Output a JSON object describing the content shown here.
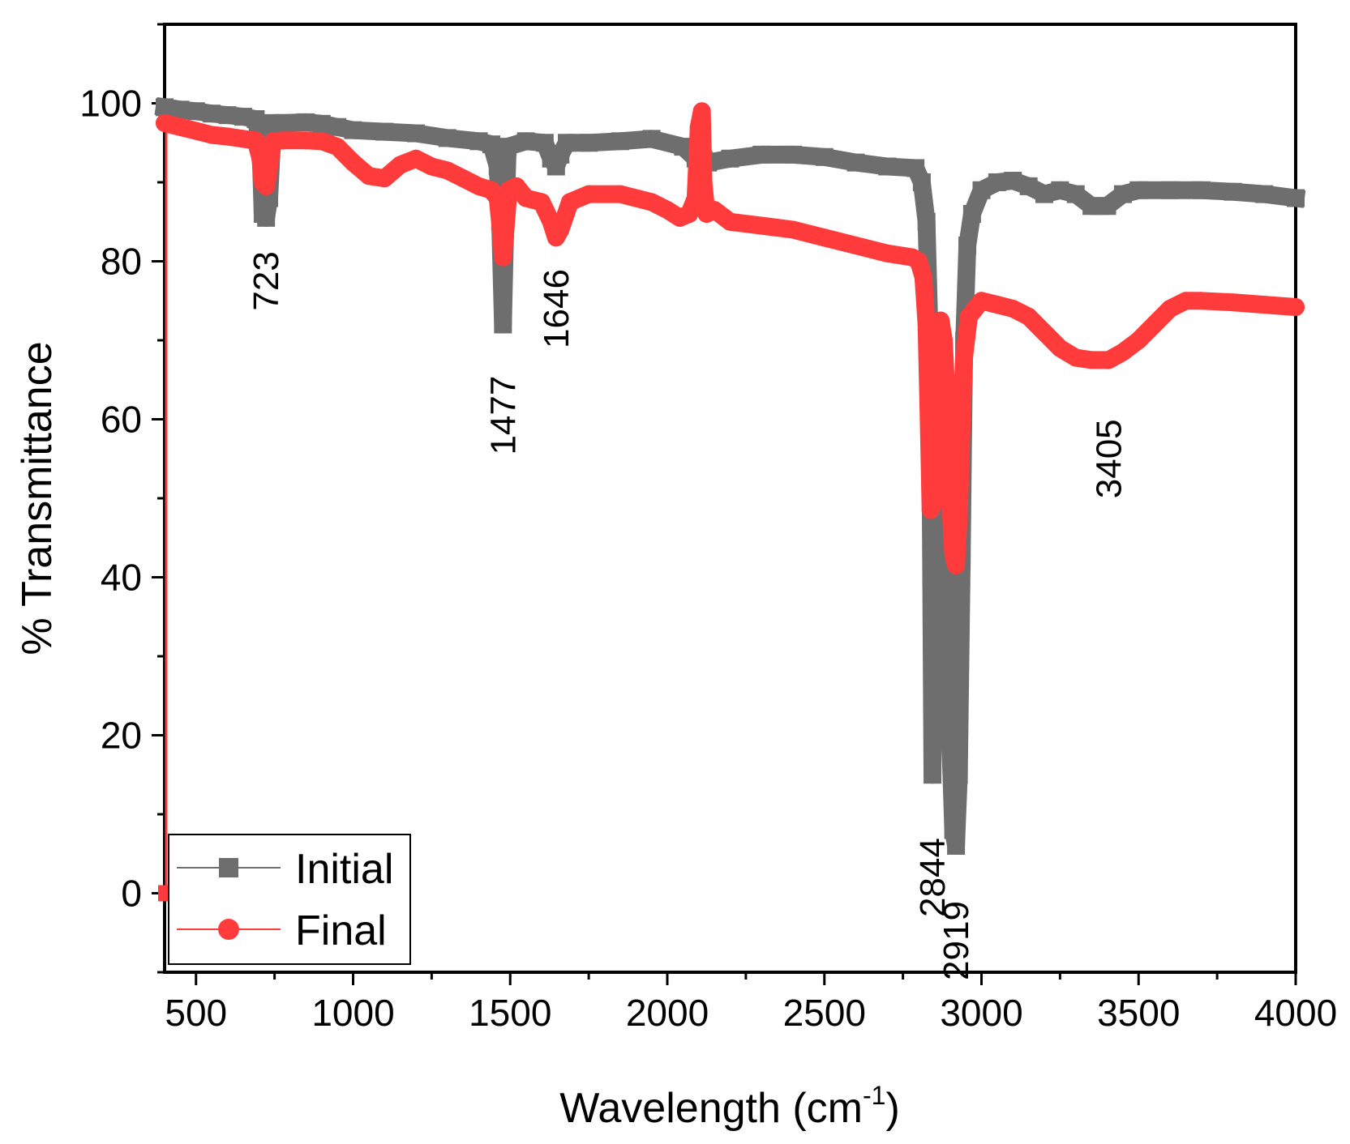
{
  "chart_data": {
    "type": "line",
    "xlabel": "Wavelength (cm",
    "xlabel_sup": "-1",
    "xlabel_close": ")",
    "ylabel": "% Transmittance",
    "xlim": [
      400,
      4000
    ],
    "ylim": [
      -10,
      110
    ],
    "x_ticks": [
      500,
      1000,
      1500,
      2000,
      2500,
      3000,
      3500,
      4000
    ],
    "y_ticks": [
      0,
      20,
      40,
      60,
      80,
      100
    ],
    "grid": false,
    "legend_position": "bottom-left",
    "series": [
      {
        "name": "Initial",
        "color": "#6e6e6e",
        "marker": "square",
        "points": [
          [
            400,
            99.5
          ],
          [
            450,
            99.2
          ],
          [
            500,
            99
          ],
          [
            550,
            98.7
          ],
          [
            600,
            98.5
          ],
          [
            650,
            98.3
          ],
          [
            690,
            98
          ],
          [
            705,
            95
          ],
          [
            712,
            86
          ],
          [
            723,
            85.5
          ],
          [
            733,
            88
          ],
          [
            745,
            97.5
          ],
          [
            780,
            97.5
          ],
          [
            850,
            97.6
          ],
          [
            900,
            97.4
          ],
          [
            950,
            97
          ],
          [
            1000,
            96.6
          ],
          [
            1100,
            96.4
          ],
          [
            1200,
            96.2
          ],
          [
            1300,
            95.6
          ],
          [
            1400,
            95.2
          ],
          [
            1440,
            94.8
          ],
          [
            1460,
            92
          ],
          [
            1468,
            85
          ],
          [
            1477,
            72
          ],
          [
            1484,
            84
          ],
          [
            1492,
            94.5
          ],
          [
            1550,
            95.2
          ],
          [
            1610,
            95
          ],
          [
            1630,
            93
          ],
          [
            1646,
            92
          ],
          [
            1660,
            93.5
          ],
          [
            1680,
            95
          ],
          [
            1750,
            95
          ],
          [
            1850,
            95.2
          ],
          [
            1950,
            95.5
          ],
          [
            2050,
            94.5
          ],
          [
            2090,
            93
          ],
          [
            2100,
            96
          ],
          [
            2110,
            94
          ],
          [
            2130,
            92.5
          ],
          [
            2200,
            93
          ],
          [
            2300,
            93.5
          ],
          [
            2400,
            93.5
          ],
          [
            2500,
            93.2
          ],
          [
            2600,
            92.5
          ],
          [
            2700,
            92
          ],
          [
            2790,
            91.8
          ],
          [
            2810,
            90
          ],
          [
            2825,
            85
          ],
          [
            2835,
            70
          ],
          [
            2840,
            40
          ],
          [
            2844,
            15
          ],
          [
            2850,
            35
          ],
          [
            2860,
            55
          ],
          [
            2872,
            60
          ],
          [
            2885,
            45
          ],
          [
            2900,
            20
          ],
          [
            2910,
            8
          ],
          [
            2919,
            6
          ],
          [
            2928,
            15
          ],
          [
            2937,
            42
          ],
          [
            2945,
            70
          ],
          [
            2955,
            82
          ],
          [
            2970,
            86
          ],
          [
            3000,
            89
          ],
          [
            3050,
            90
          ],
          [
            3100,
            90.2
          ],
          [
            3150,
            89.5
          ],
          [
            3200,
            88.5
          ],
          [
            3250,
            89
          ],
          [
            3300,
            88.5
          ],
          [
            3350,
            87
          ],
          [
            3400,
            87
          ],
          [
            3450,
            88.5
          ],
          [
            3500,
            89
          ],
          [
            3600,
            89
          ],
          [
            3700,
            89
          ],
          [
            3800,
            88.8
          ],
          [
            3900,
            88.5
          ],
          [
            4000,
            88
          ]
        ]
      },
      {
        "name": "Final",
        "color": "#ff3b3b",
        "marker": "circle",
        "points": [
          [
            400,
            97.5
          ],
          [
            450,
            97
          ],
          [
            500,
            96.5
          ],
          [
            550,
            96
          ],
          [
            600,
            95.8
          ],
          [
            650,
            95.5
          ],
          [
            690,
            95.3
          ],
          [
            705,
            93
          ],
          [
            712,
            90
          ],
          [
            723,
            89.5
          ],
          [
            733,
            92
          ],
          [
            745,
            95.2
          ],
          [
            780,
            95.3
          ],
          [
            850,
            95.3
          ],
          [
            900,
            95.2
          ],
          [
            950,
            94.5
          ],
          [
            1000,
            92.5
          ],
          [
            1050,
            90.8
          ],
          [
            1100,
            90.5
          ],
          [
            1150,
            92.2
          ],
          [
            1200,
            93
          ],
          [
            1250,
            92
          ],
          [
            1300,
            91.5
          ],
          [
            1350,
            90.5
          ],
          [
            1400,
            89.5
          ],
          [
            1440,
            89
          ],
          [
            1460,
            88
          ],
          [
            1470,
            84
          ],
          [
            1477,
            80.5
          ],
          [
            1485,
            84
          ],
          [
            1495,
            89
          ],
          [
            1520,
            89.5
          ],
          [
            1550,
            88
          ],
          [
            1600,
            87.5
          ],
          [
            1630,
            85
          ],
          [
            1646,
            83
          ],
          [
            1660,
            84
          ],
          [
            1690,
            87.5
          ],
          [
            1750,
            88.5
          ],
          [
            1850,
            88.5
          ],
          [
            1950,
            87.5
          ],
          [
            2000,
            86.5
          ],
          [
            2040,
            85.5
          ],
          [
            2070,
            86
          ],
          [
            2090,
            88
          ],
          [
            2100,
            97
          ],
          [
            2110,
            99
          ],
          [
            2115,
            90
          ],
          [
            2125,
            86
          ],
          [
            2150,
            86.5
          ],
          [
            2200,
            85
          ],
          [
            2300,
            84.5
          ],
          [
            2400,
            84
          ],
          [
            2500,
            83
          ],
          [
            2600,
            82
          ],
          [
            2700,
            81
          ],
          [
            2780,
            80.5
          ],
          [
            2800,
            80
          ],
          [
            2815,
            78
          ],
          [
            2825,
            72
          ],
          [
            2832,
            60
          ],
          [
            2838,
            48.5
          ],
          [
            2844,
            49
          ],
          [
            2852,
            60
          ],
          [
            2860,
            68
          ],
          [
            2870,
            72.5
          ],
          [
            2880,
            70
          ],
          [
            2890,
            62
          ],
          [
            2900,
            50
          ],
          [
            2910,
            43
          ],
          [
            2919,
            41.5
          ],
          [
            2928,
            48
          ],
          [
            2937,
            60
          ],
          [
            2945,
            68
          ],
          [
            2960,
            73
          ],
          [
            3000,
            75
          ],
          [
            3050,
            74.5
          ],
          [
            3100,
            74
          ],
          [
            3150,
            73
          ],
          [
            3200,
            71
          ],
          [
            3250,
            69
          ],
          [
            3300,
            67.8
          ],
          [
            3350,
            67.5
          ],
          [
            3405,
            67.5
          ],
          [
            3450,
            68.5
          ],
          [
            3500,
            70
          ],
          [
            3550,
            72
          ],
          [
            3600,
            74
          ],
          [
            3650,
            75
          ],
          [
            3700,
            75
          ],
          [
            3800,
            74.8
          ],
          [
            3900,
            74.5
          ],
          [
            4000,
            74.2
          ]
        ]
      }
    ],
    "annotations": [
      {
        "text": "723",
        "x": 723,
        "y": 77.5
      },
      {
        "text": "1477",
        "x": 1477,
        "y": 60.5
      },
      {
        "text": "1646",
        "x": 1646,
        "y": 74
      },
      {
        "text": "2844",
        "x": 2844,
        "y": 2
      },
      {
        "text": "2919",
        "x": 2919,
        "y": -6
      },
      {
        "text": "3405",
        "x": 3405,
        "y": 55
      }
    ]
  }
}
